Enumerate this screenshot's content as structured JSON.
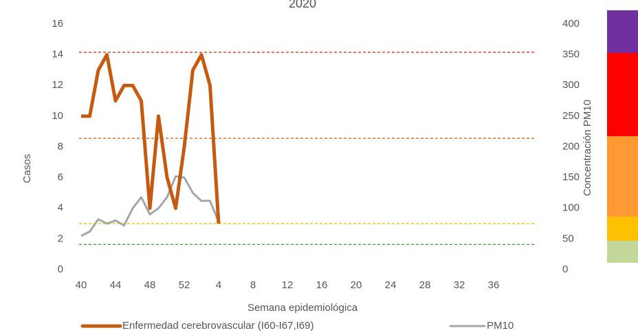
{
  "chart_data": {
    "type": "line",
    "title": "2020",
    "ylabel": "Casos",
    "y2label": "Concentración PM10",
    "xlabel": "Semana epidemiológica",
    "categories": [
      40,
      null,
      null,
      null,
      44,
      null,
      null,
      null,
      48,
      null,
      null,
      null,
      52,
      null,
      null,
      null,
      4,
      null,
      null,
      null,
      8,
      null,
      null,
      null,
      12,
      null,
      null,
      null,
      16,
      null,
      null,
      null,
      20,
      null,
      null,
      null,
      24,
      null,
      null,
      null,
      28,
      null,
      null,
      null,
      32,
      null,
      null,
      null,
      36,
      null,
      null,
      null
    ],
    "series": [
      {
        "name": "Enfermedad cerebrovascular (I60-I67,I69)",
        "color": "#c55a11",
        "axis": "y",
        "values": [
          10,
          10,
          13,
          14,
          11,
          12,
          12,
          11,
          4,
          10,
          6,
          4,
          8,
          13,
          14,
          12,
          3,
          null,
          null,
          null,
          null,
          null,
          null,
          null,
          null,
          null,
          null,
          null,
          null,
          null,
          null,
          null,
          null,
          null,
          null,
          null,
          null,
          null,
          null,
          null,
          null,
          null,
          null,
          null,
          null,
          null,
          null,
          null,
          null,
          null,
          null,
          null
        ]
      },
      {
        "name": "PM10",
        "color": "#a6a6a6",
        "axis": "y2",
        "values": [
          55,
          62,
          82,
          75,
          80,
          72,
          100,
          118,
          90,
          100,
          118,
          152,
          150,
          125,
          112,
          112,
          78,
          null,
          null,
          null,
          null,
          null,
          null,
          null,
          null,
          null,
          null,
          null,
          null,
          null,
          null,
          null,
          null,
          null,
          null,
          null,
          null,
          null,
          null,
          null,
          null,
          null,
          null,
          null,
          null,
          null,
          null,
          null,
          null,
          null,
          null,
          null
        ]
      }
    ],
    "ylim": [
      0,
      16
    ],
    "yticks": [
      0,
      2,
      4,
      6,
      8,
      10,
      12,
      14,
      16
    ],
    "y2lim": [
      0,
      400
    ],
    "y2ticks": [
      0,
      50,
      100,
      150,
      200,
      250,
      300,
      350,
      400
    ],
    "thresholds": [
      {
        "value": 354,
        "color": "#e03030"
      },
      {
        "value": 214,
        "color": "#c55a11"
      },
      {
        "value": 75,
        "color": "#f0c000"
      },
      {
        "value": 41,
        "color": "#3a9a3a"
      }
    ]
  }
}
